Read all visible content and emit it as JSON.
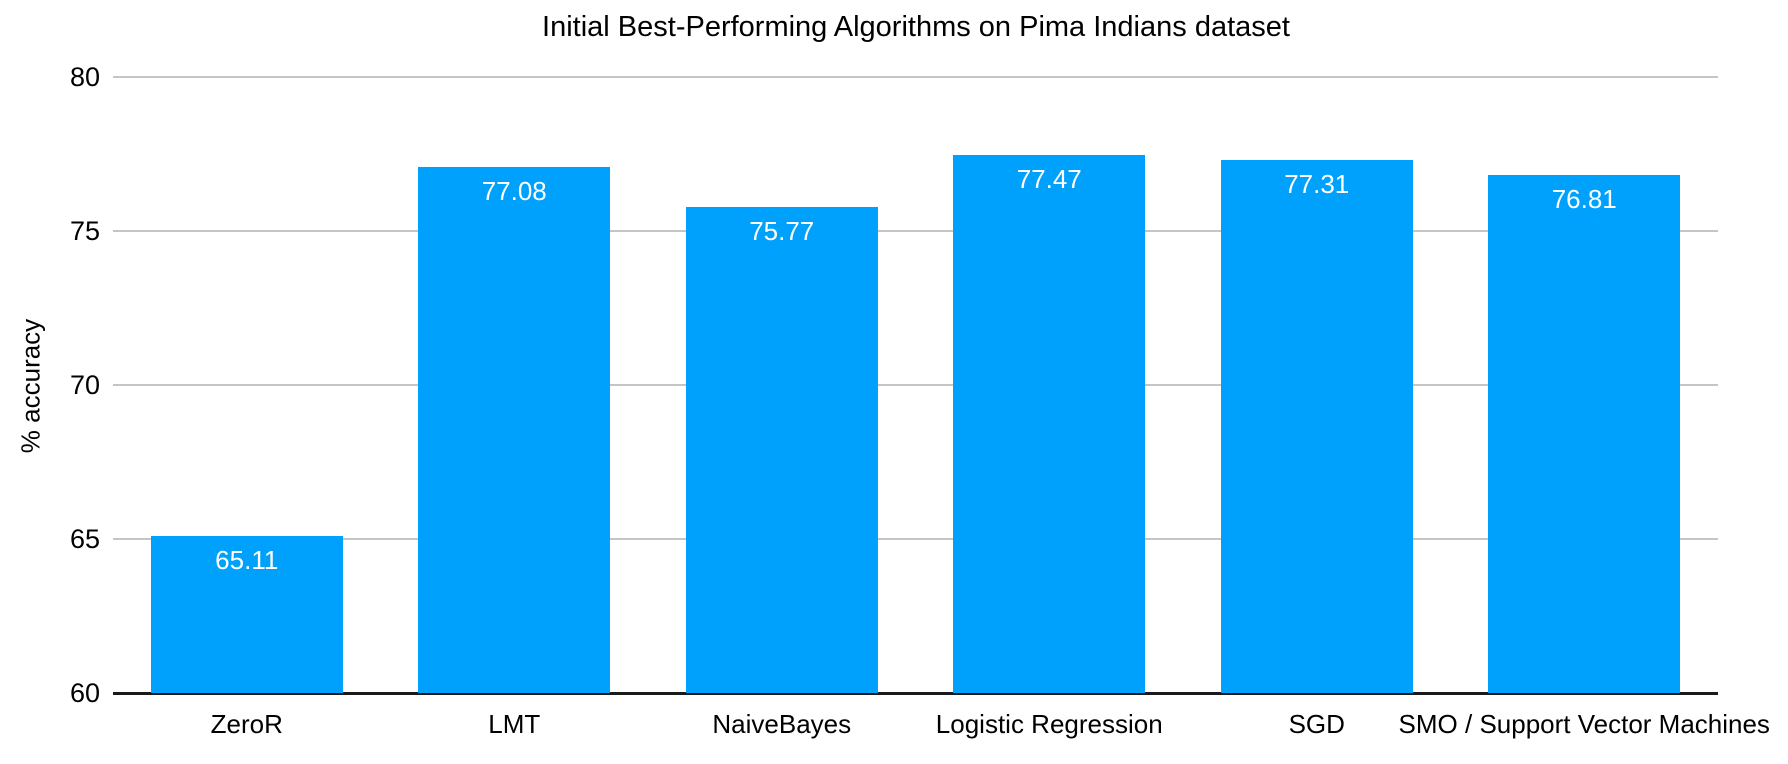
{
  "chart_data": {
    "type": "bar",
    "title": "Initial Best-Performing Algorithms on Pima Indians dataset",
    "xlabel": "",
    "ylabel": "% accuracy",
    "categories": [
      "ZeroR",
      "LMT",
      "NaiveBayes",
      "Logistic Regression",
      "SGD",
      "SMO / Support Vector Machines"
    ],
    "values": [
      65.11,
      77.08,
      75.77,
      77.47,
      77.31,
      76.81
    ],
    "value_labels": [
      "65.11",
      "77.08",
      "75.77",
      "77.47",
      "77.31",
      "76.81"
    ],
    "ylim": [
      60,
      80
    ],
    "yticks": [
      60,
      65,
      70,
      75,
      80
    ],
    "grid": true,
    "legend": "none",
    "colors": {
      "bar": "#00a1fc",
      "gridline": "#c5c5c5",
      "axis_line": "#1a1a1a",
      "text": "#000000",
      "value_label": "#ffffff",
      "background": "#ffffff"
    }
  }
}
